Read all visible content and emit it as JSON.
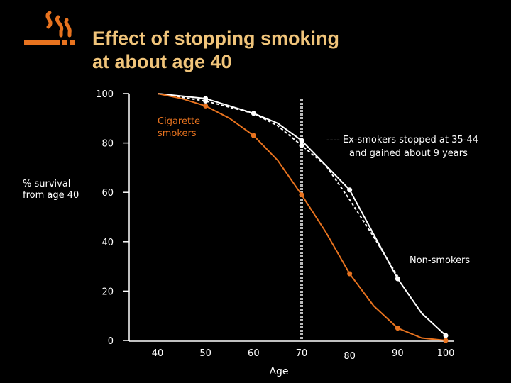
{
  "header": {
    "title_line1": "Effect of stopping smoking",
    "title_line2": "at about age 40",
    "icon": "cigarette-icon"
  },
  "colors": {
    "background": "#000000",
    "title": "#F0C47A",
    "smokers": "#E8731F",
    "non_smokers": "#FFFFFF",
    "ex_smokers": "#FFFFFF",
    "marker_line": "#BBBBBB",
    "axis": "#FFFFFF"
  },
  "chart_data": {
    "type": "line",
    "title": "Effect of stopping smoking at about age 40",
    "ylabel_line1": "% survival",
    "ylabel_line2": "from age 40",
    "xlabel": "Age",
    "xlim": [
      40,
      100
    ],
    "ylim": [
      0,
      100
    ],
    "x_ticks": [
      40,
      50,
      60,
      70,
      80,
      90,
      100
    ],
    "y_ticks": [
      0,
      20,
      40,
      60,
      80,
      100
    ],
    "grid": false,
    "reference_line_x": 70,
    "series": [
      {
        "key": "non_smokers",
        "name": "Non-smokers",
        "style": "solid",
        "color": "#FFFFFF",
        "x": [
          40,
          50,
          60,
          65,
          70,
          80,
          90,
          95,
          100
        ],
        "y": [
          100,
          98,
          92,
          88,
          81,
          61,
          25,
          11,
          2
        ],
        "marker_x": [
          50,
          60,
          70,
          80,
          90,
          100
        ]
      },
      {
        "key": "ex_smokers",
        "name": "Ex-smokers stopped at 35-44 and gained about 9 years",
        "style": "dashed",
        "color": "#FFFFFF",
        "x": [
          40,
          50,
          60,
          65,
          70,
          75,
          80,
          85,
          90
        ],
        "y": [
          100,
          97,
          92,
          87,
          79,
          71,
          57,
          42,
          26
        ],
        "marker_x": [
          50,
          70
        ]
      },
      {
        "key": "smokers",
        "name": "Cigarette smokers",
        "style": "solid",
        "color": "#E8731F",
        "x": [
          40,
          45,
          50,
          55,
          60,
          65,
          70,
          75,
          80,
          85,
          90,
          95,
          100
        ],
        "y": [
          100,
          98,
          95,
          90,
          83,
          73,
          59,
          44,
          27,
          14,
          5,
          1,
          0
        ],
        "marker_x": [
          50,
          60,
          70,
          80,
          90,
          100
        ]
      }
    ],
    "labels": {
      "smokers": "Cigarette\nsmokers",
      "ex_smokers": "---- Ex-smokers stopped at 35-44\nand gained about 9 years",
      "non_smokers": "Non-smokers"
    }
  }
}
